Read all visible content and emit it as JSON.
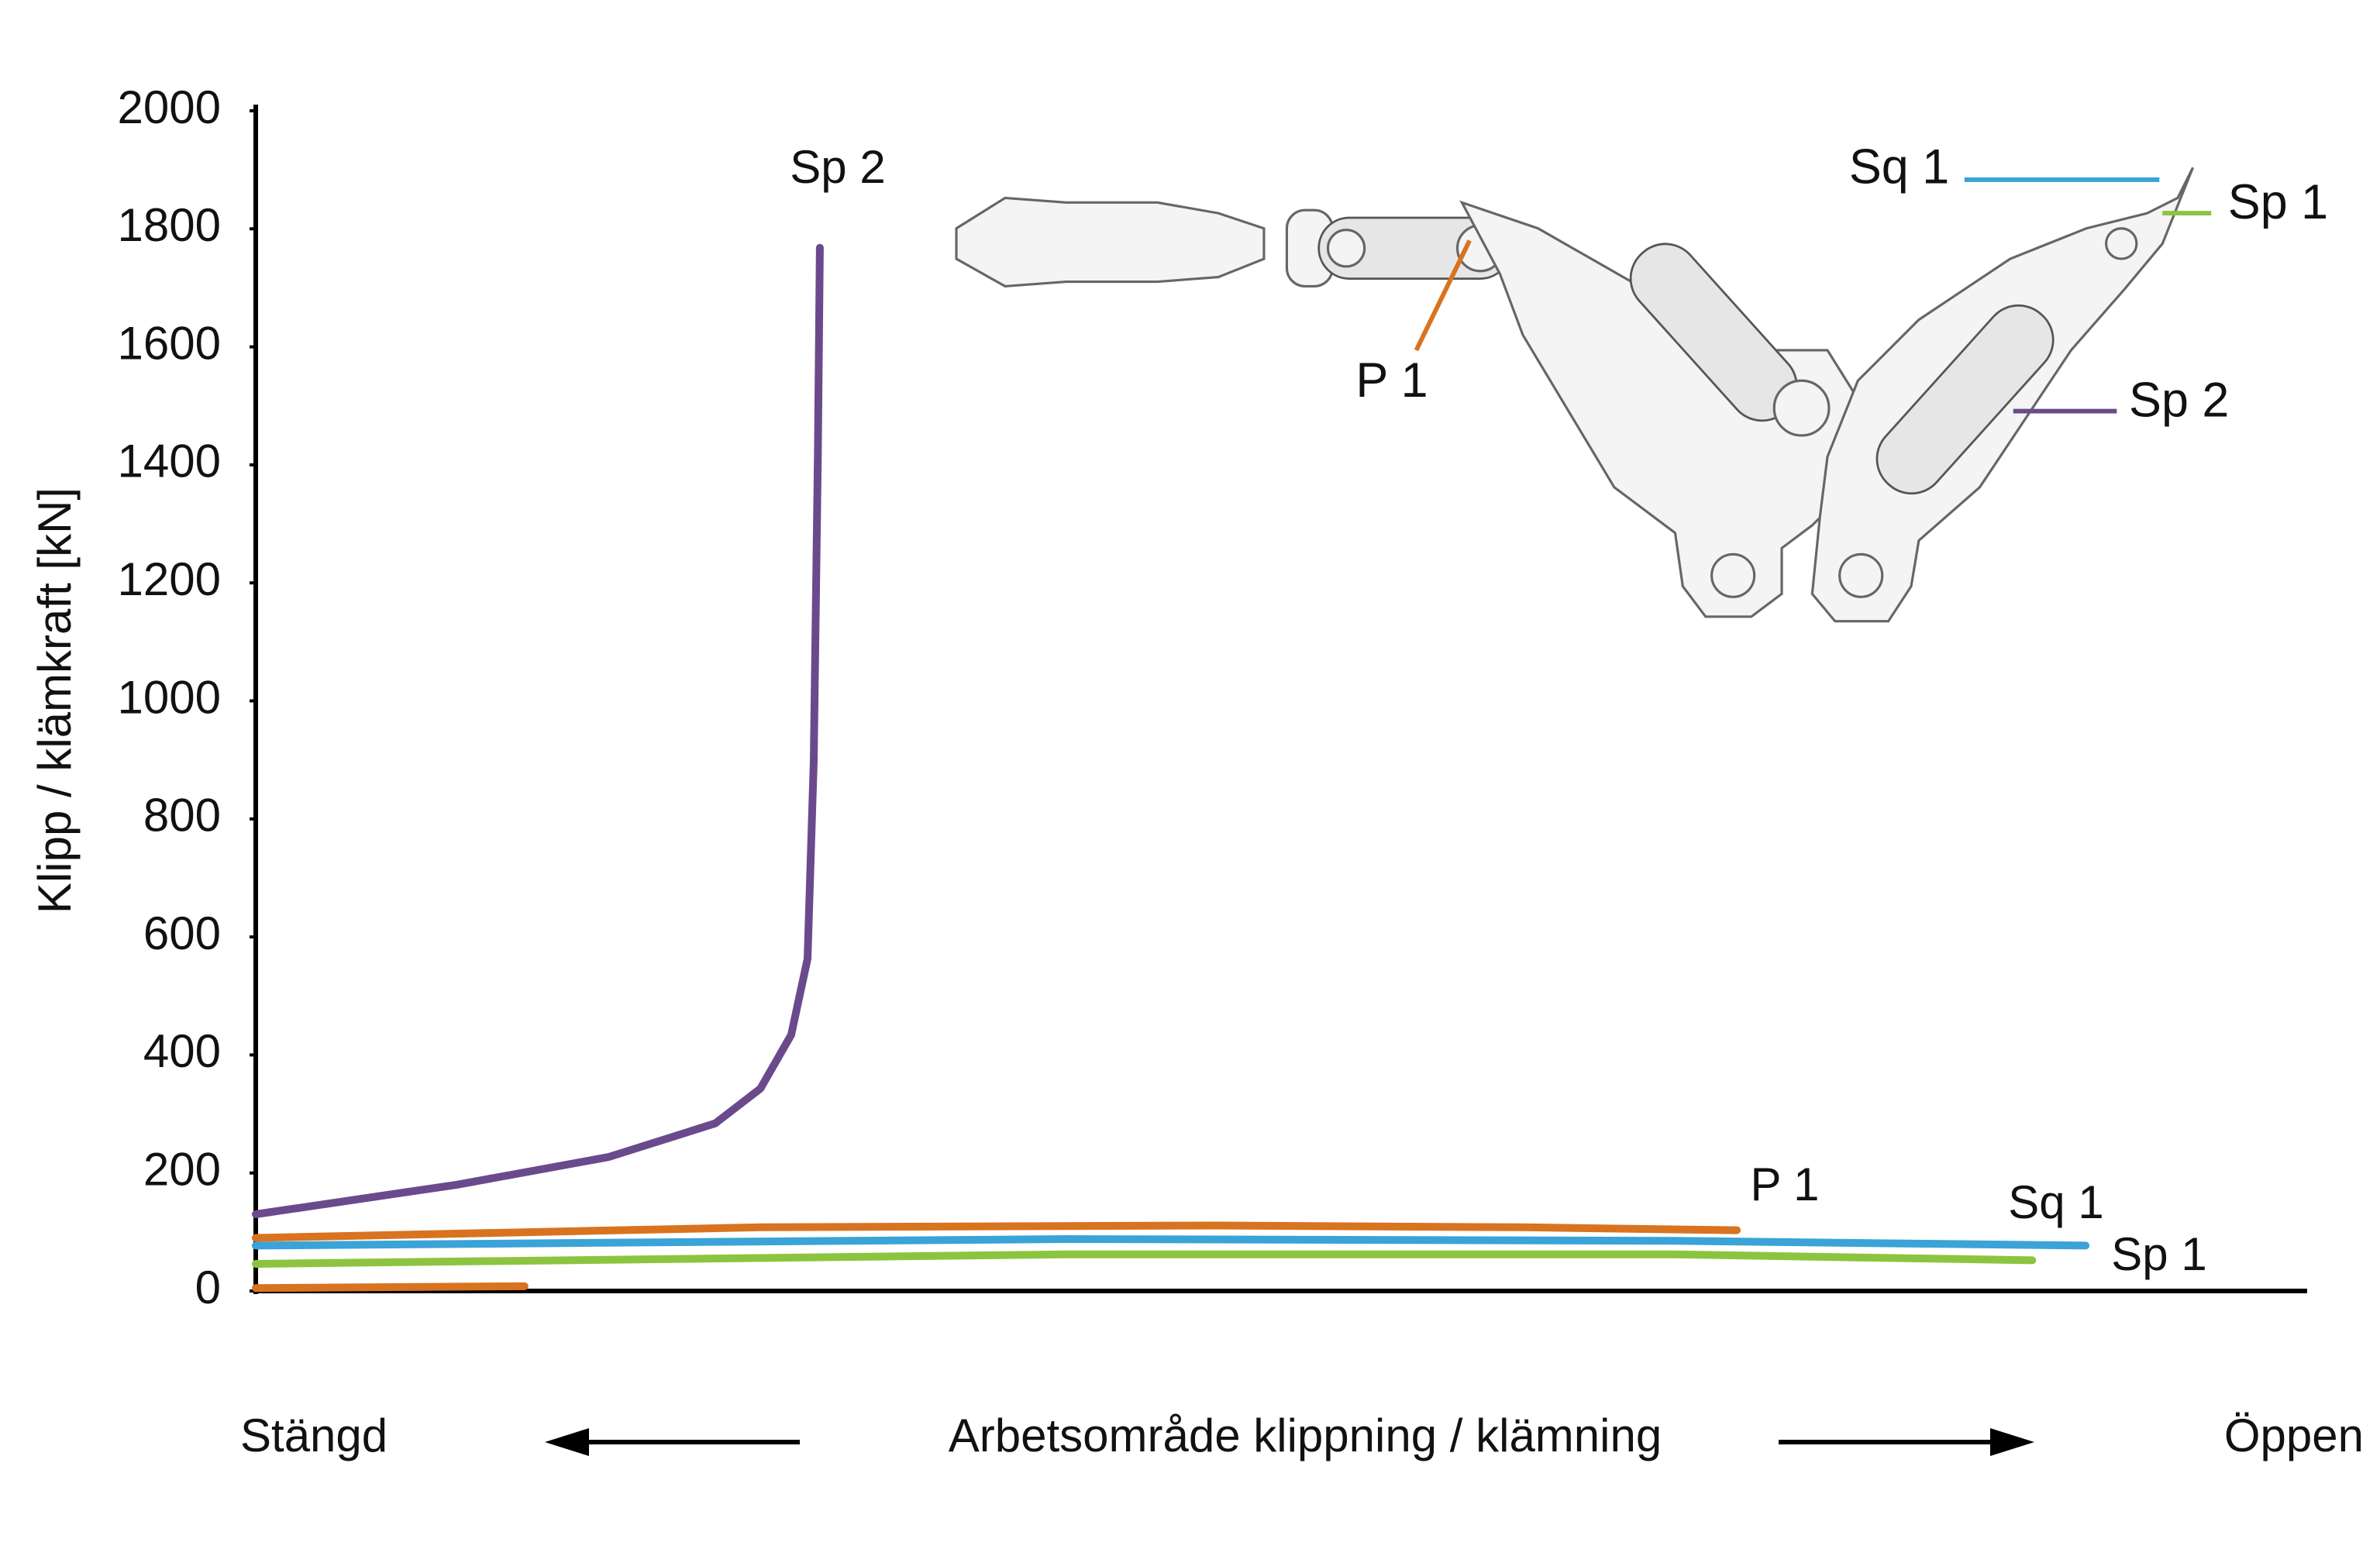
{
  "chart_data": {
    "type": "line",
    "ylabel": "Klipp / klämkraft [kN]",
    "xlabel": "Arbetsområde klippning / klämning",
    "x_start_label": "Stängd",
    "x_end_label": "Öppen",
    "xlim": [
      0,
      100
    ],
    "ylim": [
      0,
      2000
    ],
    "yticks": [
      0,
      200,
      400,
      600,
      800,
      1000,
      1200,
      1400,
      1600,
      1800,
      2000
    ],
    "grid": false,
    "series": [
      {
        "name": "Sp 2",
        "color": "#6a4a8c",
        "x": [
          0,
          9.8,
          17.2,
          22.4,
          24.6,
          26.1,
          26.9,
          27.2,
          27.4,
          27.5
        ],
        "values": [
          130,
          180,
          227,
          284,
          343,
          434,
          563,
          898,
          1414,
          1768
        ]
      },
      {
        "name": "P 1",
        "color": "#d9731f",
        "x": [
          0,
          24.6,
          46.9,
          61.8,
          72.2
        ],
        "values": [
          90,
          108,
          111,
          108,
          103
        ]
      },
      {
        "color": "#d9731f",
        "x": [
          0,
          13.1
        ],
        "values": [
          5,
          8
        ]
      },
      {
        "name": "Sq 1",
        "color": "#3aa3d8",
        "x": [
          0,
          39.5,
          69.2,
          89.2
        ],
        "values": [
          77,
          88,
          85,
          77
        ]
      },
      {
        "name": "Sp 1",
        "color": "#8cc43f",
        "x": [
          0,
          39.5,
          69.2,
          86.6
        ],
        "values": [
          46,
          62,
          62,
          52
        ]
      }
    ]
  }
}
